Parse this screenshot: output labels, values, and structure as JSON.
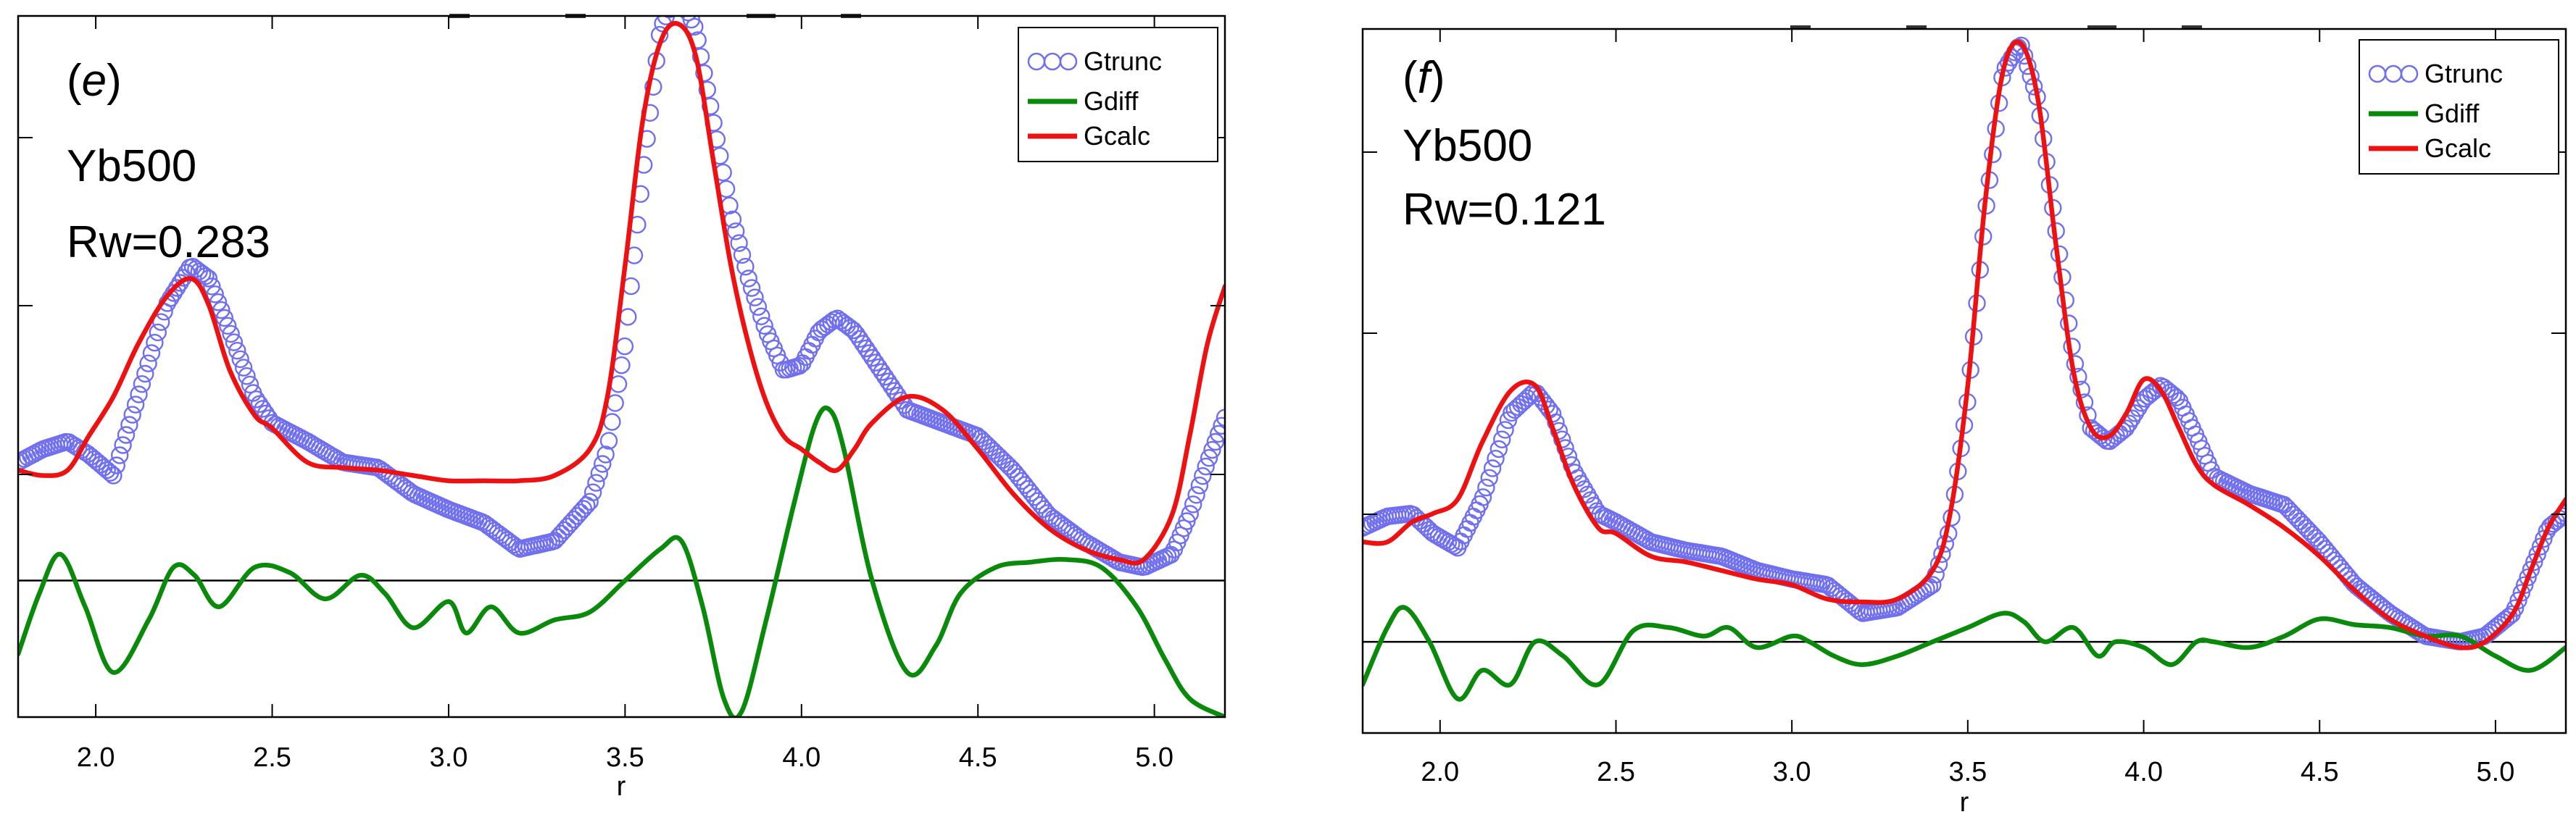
{
  "colors": {
    "gtrunc": "#6f6ff0",
    "gdiff": "#0a8a0a",
    "gcalc": "#ee1111",
    "baseline": "#000000"
  },
  "chart_data": [
    {
      "type": "line",
      "panel_label": "e",
      "sample": "Yb500",
      "rw": "Rw=0.283",
      "xlabel": "r",
      "ylabel": "",
      "xlim": [
        1.78,
        5.2
      ],
      "ylim": [
        -0.52,
        2.15
      ],
      "xticks": [
        2.0,
        2.5,
        3.0,
        3.5,
        4.0,
        4.5,
        5.0
      ],
      "xtick_labels": [
        "2.0",
        "2.5",
        "3.0",
        "3.5",
        "4.0",
        "4.5",
        "5.0"
      ],
      "legend": {
        "position": "top-right",
        "entries": [
          "Gtrunc",
          "Gdiff",
          "Gcalc"
        ]
      },
      "series": [
        {
          "name": "Gtrunc",
          "marker": "open-circle",
          "x": [
            1.78,
            1.85,
            1.92,
            1.98,
            2.05,
            2.12,
            2.2,
            2.27,
            2.32,
            2.38,
            2.45,
            2.5,
            2.6,
            2.7,
            2.8,
            2.9,
            3.0,
            3.1,
            3.2,
            3.3,
            3.4,
            3.45,
            3.5,
            3.55,
            3.6,
            3.65,
            3.7,
            3.75,
            3.8,
            3.85,
            3.9,
            3.95,
            4.0,
            4.05,
            4.1,
            4.15,
            4.2,
            4.3,
            4.4,
            4.5,
            4.6,
            4.7,
            4.8,
            4.9,
            4.97,
            5.05,
            5.1,
            5.15,
            5.2
          ],
          "y": [
            0.45,
            0.5,
            0.53,
            0.48,
            0.4,
            0.7,
            1.05,
            1.2,
            1.15,
            0.95,
            0.7,
            0.6,
            0.53,
            0.45,
            0.43,
            0.33,
            0.27,
            0.22,
            0.12,
            0.15,
            0.3,
            0.5,
            0.9,
            1.55,
            2.1,
            2.25,
            2.1,
            1.75,
            1.4,
            1.15,
            0.95,
            0.8,
            0.82,
            0.95,
            1.0,
            0.95,
            0.85,
            0.65,
            0.6,
            0.55,
            0.42,
            0.25,
            0.15,
            0.07,
            0.05,
            0.1,
            0.25,
            0.45,
            0.62
          ]
        },
        {
          "name": "Gdiff",
          "x": [
            1.78,
            1.84,
            1.9,
            1.97,
            2.05,
            2.15,
            2.22,
            2.28,
            2.35,
            2.45,
            2.55,
            2.65,
            2.75,
            2.82,
            2.9,
            3.0,
            3.05,
            3.12,
            3.2,
            3.3,
            3.4,
            3.5,
            3.6,
            3.66,
            3.72,
            3.78,
            3.83,
            3.9,
            3.98,
            4.04,
            4.08,
            4.12,
            4.2,
            4.3,
            4.38,
            4.45,
            4.55,
            4.65,
            4.75,
            4.85,
            4.95,
            5.03,
            5.1,
            5.2
          ],
          "y": [
            -0.28,
            -0.05,
            0.1,
            -0.1,
            -0.35,
            -0.15,
            0.05,
            0.02,
            -0.1,
            0.05,
            0.03,
            -0.07,
            0.02,
            -0.05,
            -0.18,
            -0.08,
            -0.2,
            -0.1,
            -0.2,
            -0.15,
            -0.12,
            0.0,
            0.12,
            0.15,
            -0.1,
            -0.45,
            -0.5,
            -0.15,
            0.3,
            0.6,
            0.65,
            0.5,
            0.0,
            -0.35,
            -0.25,
            -0.05,
            0.05,
            0.07,
            0.08,
            0.05,
            -0.1,
            -0.3,
            -0.45,
            -0.52
          ]
        },
        {
          "name": "Gcalc",
          "x": [
            1.78,
            1.85,
            1.92,
            1.98,
            2.05,
            2.12,
            2.2,
            2.27,
            2.32,
            2.38,
            2.45,
            2.5,
            2.6,
            2.7,
            2.8,
            2.9,
            3.0,
            3.1,
            3.2,
            3.3,
            3.4,
            3.45,
            3.5,
            3.55,
            3.6,
            3.65,
            3.7,
            3.75,
            3.8,
            3.85,
            3.9,
            3.95,
            4.0,
            4.05,
            4.1,
            4.15,
            4.2,
            4.3,
            4.4,
            4.5,
            4.6,
            4.7,
            4.8,
            4.9,
            4.97,
            5.05,
            5.1,
            5.15,
            5.2
          ],
          "y": [
            0.42,
            0.4,
            0.42,
            0.55,
            0.7,
            0.9,
            1.08,
            1.15,
            1.05,
            0.8,
            0.63,
            0.58,
            0.45,
            0.43,
            0.42,
            0.4,
            0.38,
            0.38,
            0.38,
            0.4,
            0.5,
            0.7,
            1.2,
            1.75,
            2.05,
            2.12,
            2.0,
            1.6,
            1.2,
            0.9,
            0.68,
            0.55,
            0.5,
            0.45,
            0.42,
            0.5,
            0.6,
            0.7,
            0.65,
            0.5,
            0.33,
            0.2,
            0.12,
            0.08,
            0.08,
            0.25,
            0.55,
            0.9,
            1.12
          ]
        }
      ]
    },
    {
      "type": "line",
      "panel_label": "f",
      "sample": "Yb500",
      "rw": "Rw=0.121",
      "xlabel": "r",
      "ylabel": "",
      "xlim": [
        1.78,
        5.2
      ],
      "ylim": [
        -0.32,
        2.15
      ],
      "xticks": [
        2.0,
        2.5,
        3.0,
        3.5,
        4.0,
        4.5,
        5.0
      ],
      "xtick_labels": [
        "2.0",
        "2.5",
        "3.0",
        "3.5",
        "4.0",
        "4.5",
        "5.0"
      ],
      "legend": {
        "position": "top-right",
        "entries": [
          "Gtrunc",
          "Gdiff",
          "Gcalc"
        ]
      },
      "series": [
        {
          "name": "Gtrunc",
          "marker": "open-circle",
          "x": [
            1.78,
            1.85,
            1.92,
            1.98,
            2.05,
            2.12,
            2.2,
            2.27,
            2.32,
            2.38,
            2.45,
            2.5,
            2.6,
            2.7,
            2.8,
            2.9,
            3.0,
            3.1,
            3.2,
            3.3,
            3.4,
            3.45,
            3.5,
            3.55,
            3.6,
            3.65,
            3.7,
            3.75,
            3.8,
            3.85,
            3.9,
            3.95,
            4.0,
            4.05,
            4.1,
            4.15,
            4.2,
            4.3,
            4.4,
            4.5,
            4.6,
            4.7,
            4.8,
            4.9,
            4.97,
            5.05,
            5.1,
            5.15,
            5.2
          ],
          "y": [
            0.4,
            0.44,
            0.45,
            0.38,
            0.33,
            0.5,
            0.8,
            0.88,
            0.8,
            0.6,
            0.45,
            0.42,
            0.35,
            0.32,
            0.3,
            0.25,
            0.22,
            0.2,
            0.1,
            0.12,
            0.2,
            0.4,
            0.85,
            1.5,
            2.0,
            2.1,
            1.9,
            1.45,
            1.0,
            0.75,
            0.7,
            0.75,
            0.85,
            0.9,
            0.85,
            0.72,
            0.58,
            0.52,
            0.48,
            0.35,
            0.2,
            0.1,
            0.02,
            0.0,
            0.02,
            0.1,
            0.25,
            0.4,
            0.45
          ]
        },
        {
          "name": "Gdiff",
          "x": [
            1.78,
            1.85,
            1.9,
            1.97,
            2.05,
            2.12,
            2.2,
            2.27,
            2.35,
            2.45,
            2.55,
            2.65,
            2.75,
            2.82,
            2.9,
            3.0,
            3.05,
            3.12,
            3.2,
            3.3,
            3.4,
            3.5,
            3.6,
            3.66,
            3.72,
            3.8,
            3.87,
            3.92,
            4.0,
            4.08,
            4.15,
            4.2,
            4.3,
            4.4,
            4.5,
            4.6,
            4.7,
            4.8,
            4.9,
            5.0,
            5.1,
            5.2
          ],
          "y": [
            -0.15,
            0.05,
            0.12,
            0.0,
            -0.2,
            -0.1,
            -0.15,
            0.0,
            -0.05,
            -0.15,
            0.04,
            0.05,
            0.02,
            0.05,
            -0.02,
            0.02,
            0.0,
            -0.05,
            -0.08,
            -0.05,
            0.0,
            0.05,
            0.1,
            0.07,
            0.0,
            0.05,
            -0.05,
            0.0,
            -0.02,
            -0.08,
            0.0,
            0.0,
            -0.02,
            0.02,
            0.08,
            0.06,
            0.05,
            0.02,
            0.02,
            -0.05,
            -0.1,
            -0.02
          ]
        },
        {
          "name": "Gcalc",
          "x": [
            1.78,
            1.85,
            1.92,
            1.98,
            2.05,
            2.12,
            2.2,
            2.27,
            2.32,
            2.38,
            2.45,
            2.5,
            2.6,
            2.7,
            2.8,
            2.9,
            3.0,
            3.1,
            3.2,
            3.3,
            3.4,
            3.45,
            3.5,
            3.55,
            3.6,
            3.65,
            3.7,
            3.75,
            3.8,
            3.85,
            3.9,
            3.95,
            4.0,
            4.05,
            4.1,
            4.15,
            4.2,
            4.3,
            4.4,
            4.5,
            4.6,
            4.7,
            4.8,
            4.9,
            4.97,
            5.05,
            5.1,
            5.15,
            5.2
          ],
          "y": [
            0.35,
            0.35,
            0.42,
            0.45,
            0.5,
            0.7,
            0.88,
            0.9,
            0.75,
            0.55,
            0.4,
            0.38,
            0.3,
            0.28,
            0.25,
            0.22,
            0.2,
            0.15,
            0.14,
            0.15,
            0.25,
            0.45,
            0.9,
            1.55,
            2.0,
            2.1,
            1.9,
            1.4,
            0.95,
            0.75,
            0.72,
            0.8,
            0.92,
            0.88,
            0.75,
            0.62,
            0.55,
            0.48,
            0.4,
            0.3,
            0.18,
            0.08,
            0.02,
            -0.02,
            0.0,
            0.1,
            0.25,
            0.4,
            0.5
          ]
        }
      ]
    }
  ]
}
